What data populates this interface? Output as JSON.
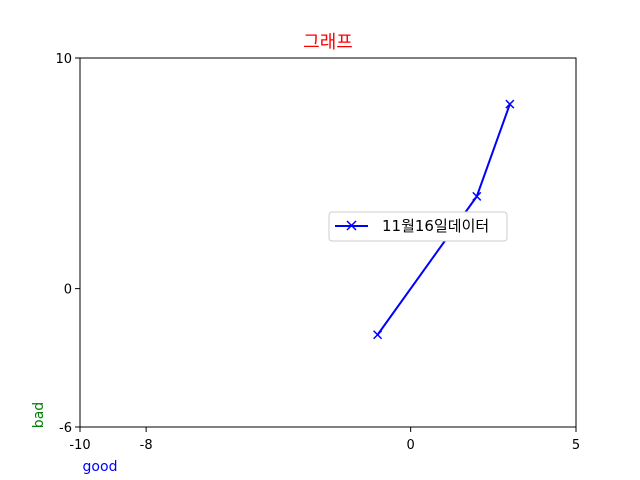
{
  "chart_data": {
    "type": "line",
    "title": "그래프",
    "title_color": "#ff0000",
    "xlabel": "good",
    "xlabel_color": "#0000ff",
    "ylabel": "bad",
    "ylabel_color": "#008000",
    "xlim": [
      -10,
      5
    ],
    "ylim": [
      -6,
      10
    ],
    "xticks": [
      -10,
      -8,
      0,
      5
    ],
    "yticks": [
      -6,
      0,
      10
    ],
    "xtick_labels": [
      "-10",
      "-8",
      "0",
      "5"
    ],
    "ytick_labels": [
      "-6",
      "0",
      "10"
    ],
    "grid": false,
    "legend_position": "center-right",
    "series": [
      {
        "name": "11월16일데이터",
        "color": "#0000ff",
        "marker": "x",
        "x": [
          -1,
          2,
          3
        ],
        "y": [
          -2,
          4,
          8
        ]
      }
    ]
  }
}
